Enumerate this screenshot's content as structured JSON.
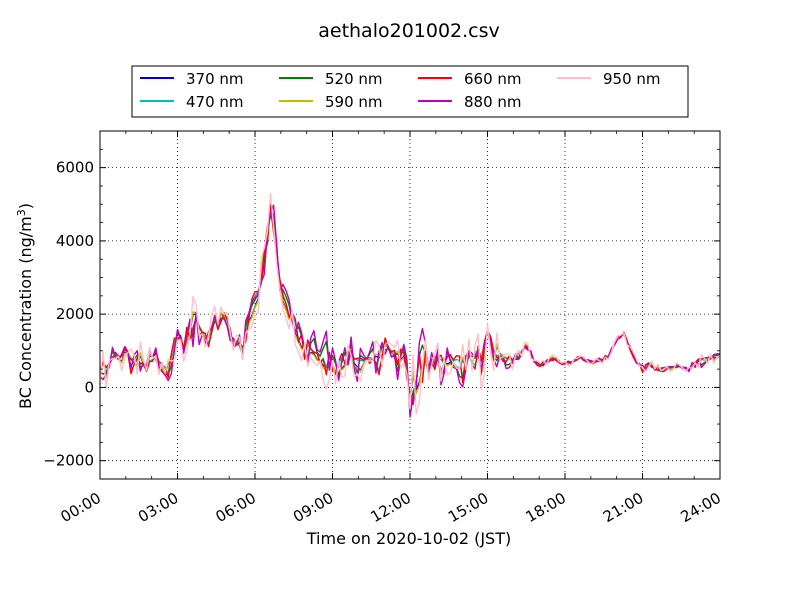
{
  "chart_data": {
    "type": "line",
    "title": "aethalo201002.csv",
    "xlabel": "Time on 2020-10-02 (JST)",
    "ylabel_main": "BC Concentration (ng/m",
    "ylabel_sup": "3",
    "ylabel_tail": ")",
    "xlim_hours": [
      0,
      24
    ],
    "ylim": [
      -2500,
      7000
    ],
    "grid": true,
    "legend_position": "top-center",
    "x_tick_labels": [
      "00:00",
      "03:00",
      "06:00",
      "09:00",
      "12:00",
      "15:00",
      "18:00",
      "21:00",
      "24:00"
    ],
    "y_ticks": [
      -2000,
      0,
      2000,
      4000,
      6000
    ],
    "y_tick_labels": [
      "−2000",
      "0",
      "2000",
      "4000",
      "6000"
    ],
    "x_hours": [
      0.0,
      0.25,
      0.5,
      0.75,
      1.0,
      1.25,
      1.5,
      1.75,
      2.0,
      2.25,
      2.5,
      2.75,
      3.0,
      3.25,
      3.5,
      3.75,
      4.0,
      4.25,
      4.5,
      4.75,
      5.0,
      5.25,
      5.5,
      5.75,
      6.0,
      6.25,
      6.5,
      6.75,
      7.0,
      7.25,
      7.5,
      7.75,
      8.0,
      8.25,
      8.5,
      8.75,
      9.0,
      9.25,
      9.5,
      9.75,
      10.0,
      10.25,
      10.5,
      10.75,
      11.0,
      11.25,
      11.5,
      11.75,
      12.0,
      12.25,
      12.5,
      12.75,
      13.0,
      13.25,
      13.5,
      13.75,
      14.0,
      14.25,
      14.5,
      14.75,
      15.0,
      15.25,
      15.5,
      15.75,
      16.0,
      16.25,
      16.5,
      16.75,
      17.0,
      17.25,
      17.5,
      17.75,
      18.0,
      18.25,
      18.5,
      18.75,
      19.0,
      19.25,
      19.5,
      19.75,
      20.0,
      20.25,
      20.5,
      20.75,
      21.0,
      21.25,
      21.5,
      21.75,
      22.0,
      22.25,
      22.5,
      22.75,
      23.0,
      23.25,
      23.5,
      23.75,
      24.0
    ],
    "base": [
      600,
      500,
      900,
      700,
      1100,
      500,
      800,
      400,
      900,
      600,
      300,
      800,
      1400,
      1200,
      1600,
      1900,
      1500,
      1300,
      1700,
      2000,
      1600,
      1200,
      900,
      1900,
      2300,
      3000,
      4600,
      4400,
      2600,
      2200,
      1700,
      1400,
      900,
      1100,
      700,
      900,
      600,
      500,
      800,
      1000,
      600,
      700,
      900,
      500,
      1200,
      900,
      700,
      1000,
      -200,
      300,
      600,
      400,
      800,
      500,
      900,
      600,
      500,
      700,
      800,
      600,
      1500,
      900,
      1000,
      700,
      800,
      900,
      1200,
      800,
      600,
      700,
      800,
      700,
      650,
      700,
      800,
      750,
      700,
      700,
      800,
      900,
      1300,
      1500,
      1100,
      700,
      500,
      600,
      550,
      450,
      500,
      600,
      550,
      500,
      650,
      700,
      750,
      800,
      850
    ],
    "wiggle": [
      400,
      600,
      300,
      500,
      700,
      400,
      600,
      350,
      450,
      600,
      500,
      700,
      300,
      500,
      700,
      900,
      600,
      500,
      800,
      400,
      350,
      700,
      500,
      450,
      700,
      900,
      1200,
      800,
      500,
      600,
      400,
      700,
      600,
      1100,
      900,
      1000,
      700,
      600,
      500,
      700,
      650,
      400,
      500,
      900,
      400,
      500,
      700,
      300,
      800,
      1200,
      1300,
      600,
      500,
      700,
      450,
      500,
      800,
      600,
      700,
      900,
      500,
      800,
      400,
      300,
      300,
      200,
      150,
      200,
      100,
      100,
      150,
      100,
      80,
      100,
      100,
      100,
      120,
      100,
      150,
      150,
      150,
      100,
      100,
      150,
      200,
      150,
      150,
      100,
      100,
      100,
      100,
      120,
      150,
      200,
      250,
      200,
      150
    ],
    "series": [
      {
        "name": "370 nm",
        "color": "#0000cc",
        "amp": 0.35
      },
      {
        "name": "470 nm",
        "color": "#00bfbf",
        "amp": 0.35
      },
      {
        "name": "520 nm",
        "color": "#008000",
        "amp": 0.45
      },
      {
        "name": "590 nm",
        "color": "#bfbf00",
        "amp": 0.45
      },
      {
        "name": "660 nm",
        "color": "#ff0000",
        "amp": 0.55
      },
      {
        "name": "880 nm",
        "color": "#bf00bf",
        "amp": 0.8
      },
      {
        "name": "950 nm",
        "color": "#ffc0cb",
        "amp": 1.0
      }
    ]
  }
}
